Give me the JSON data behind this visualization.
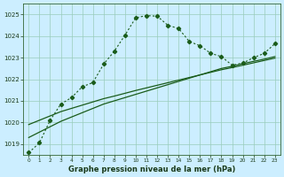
{
  "title": "Graphe pression niveau de la mer (hPa)",
  "bg_color": "#cceeff",
  "grid_color": "#99ccbb",
  "line_color": "#1a5c1a",
  "x_ticks": [
    0,
    1,
    2,
    3,
    4,
    5,
    6,
    7,
    8,
    9,
    10,
    11,
    12,
    13,
    14,
    15,
    16,
    17,
    18,
    19,
    20,
    21,
    22,
    23
  ],
  "ylim": [
    1018.5,
    1025.5
  ],
  "yticks": [
    1019,
    1020,
    1021,
    1022,
    1023,
    1024,
    1025
  ],
  "dotted_x": [
    0,
    1,
    2,
    3,
    4,
    5,
    6,
    7,
    8,
    9,
    10,
    11,
    12,
    13,
    14,
    15,
    16,
    17,
    18,
    19,
    20,
    21,
    22,
    23
  ],
  "dotted_y": [
    1018.6,
    1019.05,
    1020.1,
    1020.85,
    1021.15,
    1021.65,
    1021.85,
    1022.7,
    1023.3,
    1024.05,
    1024.85,
    1024.95,
    1024.92,
    1024.5,
    1024.35,
    1023.75,
    1023.55,
    1023.2,
    1023.05,
    1022.65,
    1022.75,
    1023.0,
    1023.2,
    1023.65
  ],
  "straight1_x": [
    0,
    1,
    2,
    3,
    4,
    5,
    6,
    7,
    8,
    9,
    10,
    11,
    12,
    13,
    14,
    15,
    16,
    17,
    18,
    19,
    20,
    21,
    22,
    23
  ],
  "straight1_y": [
    1019.3,
    1019.55,
    1019.8,
    1020.05,
    1020.25,
    1020.45,
    1020.65,
    1020.85,
    1021.0,
    1021.15,
    1021.3,
    1021.45,
    1021.6,
    1021.75,
    1021.9,
    1022.05,
    1022.2,
    1022.35,
    1022.5,
    1022.6,
    1022.72,
    1022.83,
    1022.93,
    1023.05
  ],
  "straight2_x": [
    0,
    1,
    2,
    3,
    4,
    5,
    6,
    7,
    8,
    9,
    10,
    11,
    12,
    13,
    14,
    15,
    16,
    17,
    18,
    19,
    20,
    21,
    22,
    23
  ],
  "straight2_y": [
    1019.9,
    1020.1,
    1020.3,
    1020.5,
    1020.65,
    1020.8,
    1020.95,
    1021.1,
    1021.22,
    1021.35,
    1021.48,
    1021.6,
    1021.72,
    1021.84,
    1021.96,
    1022.08,
    1022.2,
    1022.32,
    1022.44,
    1022.54,
    1022.65,
    1022.76,
    1022.87,
    1022.98
  ]
}
